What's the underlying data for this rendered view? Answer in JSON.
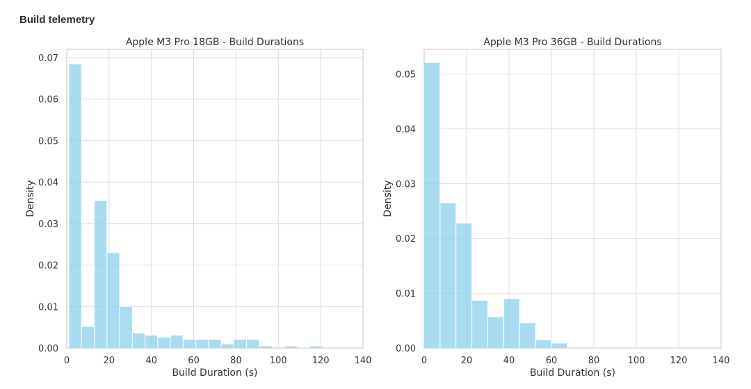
{
  "page": {
    "section_title": "Build telemetry"
  },
  "colors": {
    "bar_fill": "#87ceeb",
    "bar_edge": "#ffffff",
    "grid": "#dcdcdc",
    "frame": "#cfcfcf"
  },
  "chart_data": [
    {
      "type": "bar",
      "title": "Apple M3 Pro 18GB - Build Durations",
      "xlabel": "Build Duration (s)",
      "ylabel": "Density",
      "xlim": [
        0,
        140
      ],
      "ylim": [
        0,
        0.072
      ],
      "xticks": [
        0,
        20,
        40,
        60,
        80,
        100,
        120,
        140
      ],
      "yticks": [
        0.0,
        0.01,
        0.02,
        0.03,
        0.04,
        0.05,
        0.06,
        0.07
      ],
      "ytick_labels": [
        "0.00",
        "0.01",
        "0.02",
        "0.03",
        "0.04",
        "0.05",
        "0.06",
        "0.07"
      ],
      "grid": true,
      "bin_width": 6,
      "bin_start": 1,
      "values": [
        0.0685,
        0.0052,
        0.0356,
        0.023,
        0.01,
        0.0036,
        0.0031,
        0.0026,
        0.0031,
        0.0021,
        0.0021,
        0.0021,
        0.001,
        0.0021,
        0.0021,
        0.0005,
        0.0,
        0.0005,
        0.0,
        0.0005,
        0.0
      ]
    },
    {
      "type": "bar",
      "title": "Apple M3 Pro 36GB - Build Durations",
      "xlabel": "Build Duration (s)",
      "ylabel": "Density",
      "xlim": [
        0,
        140
      ],
      "ylim": [
        0,
        0.0545
      ],
      "xticks": [
        0,
        20,
        40,
        60,
        80,
        100,
        120,
        140
      ],
      "yticks": [
        0.0,
        0.01,
        0.02,
        0.03,
        0.04,
        0.05
      ],
      "ytick_labels": [
        "0.00",
        "0.01",
        "0.02",
        "0.03",
        "0.04",
        "0.05"
      ],
      "grid": true,
      "bin_width": 7.5,
      "bin_start": 0,
      "values": [
        0.0521,
        0.0265,
        0.0228,
        0.0087,
        0.0057,
        0.009,
        0.0046,
        0.0015,
        0.0009,
        0.0001,
        0.0001,
        0.0001,
        0.0001,
        0.0001,
        0.0001,
        0.0001,
        0.0001,
        0.0001
      ]
    }
  ]
}
